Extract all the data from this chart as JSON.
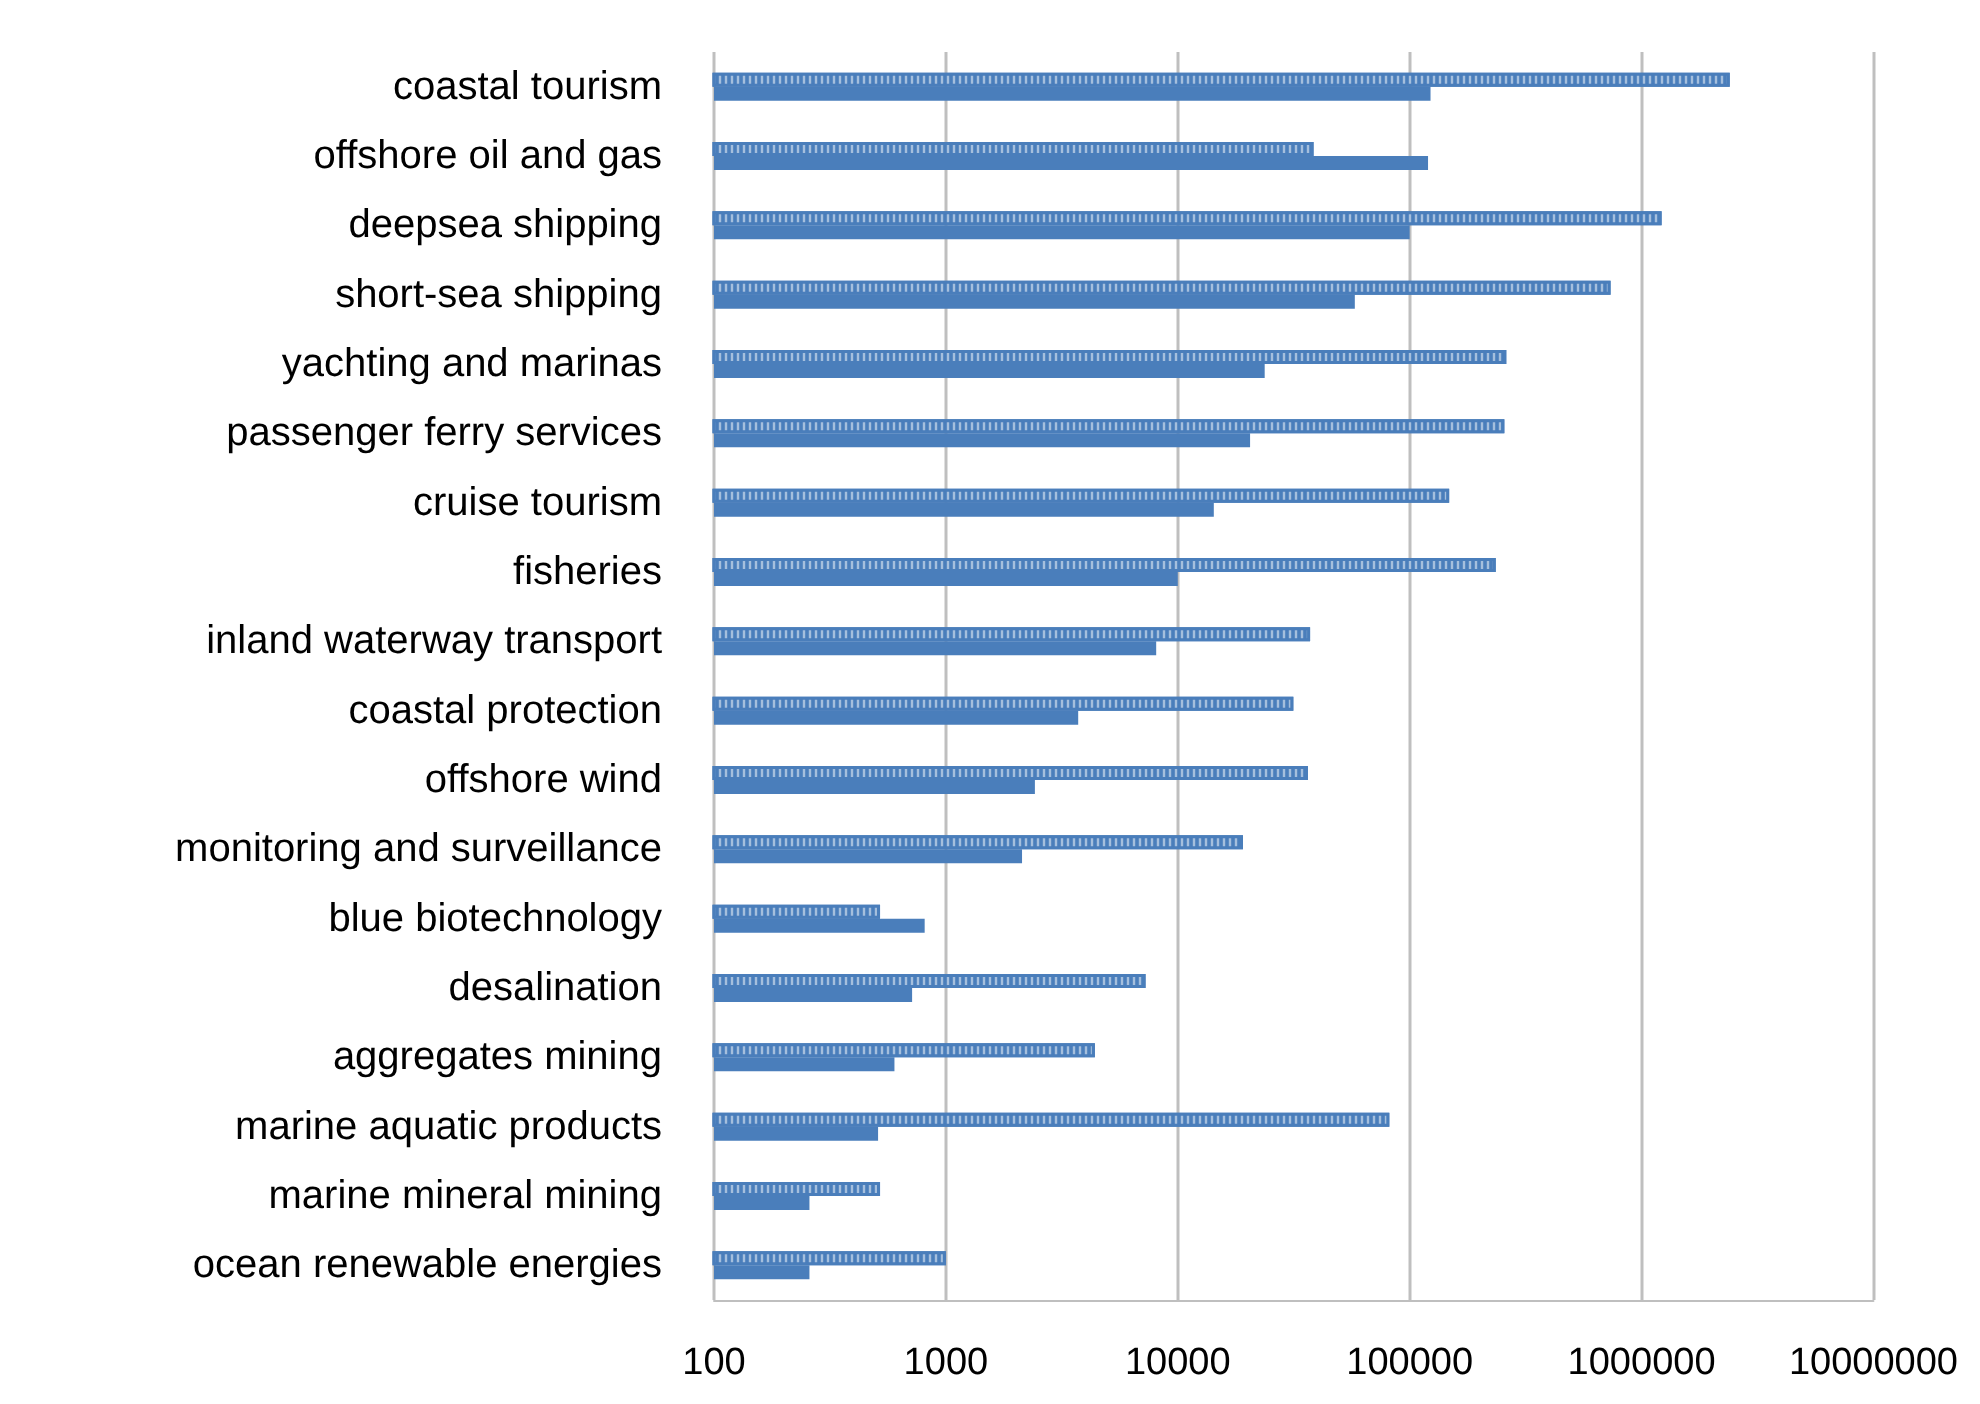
{
  "chart_data": {
    "type": "bar",
    "orientation": "horizontal",
    "log": "x",
    "categories": [
      "coastal tourism",
      "offshore oil and gas",
      "deepsea shipping",
      "short-sea shipping",
      "yachting and marinas",
      "passenger ferry services",
      "cruise tourism",
      "fisheries",
      "inland waterway transport",
      "coastal protection",
      "offshore wind",
      "monitoring and surveillance",
      "blue biotechnology",
      "desalination",
      "aggregates mining",
      "marine aquatic products",
      "marine mineral mining",
      "ocean renewable energies"
    ],
    "series": [
      {
        "color": "#4a7ebb",
        "values": [
          2400000,
          38500,
          1220000,
          735000,
          261000,
          256000,
          148000,
          235000,
          37200,
          31500,
          36400,
          19100,
          520,
          7260,
          4390,
          81700,
          520,
          1000
        ]
      },
      {
        "color": "#4a7ebb",
        "values": [
          123000,
          120000,
          100000,
          58000,
          23700,
          20500,
          14300,
          10000,
          8070,
          3720,
          2420,
          2130,
          810,
          715,
          600,
          510,
          258,
          258
        ]
      }
    ],
    "xlim": [
      100,
      10000000
    ],
    "xticks": [
      100,
      1000,
      10000,
      100000,
      1000000,
      10000000
    ],
    "grid": "x"
  }
}
